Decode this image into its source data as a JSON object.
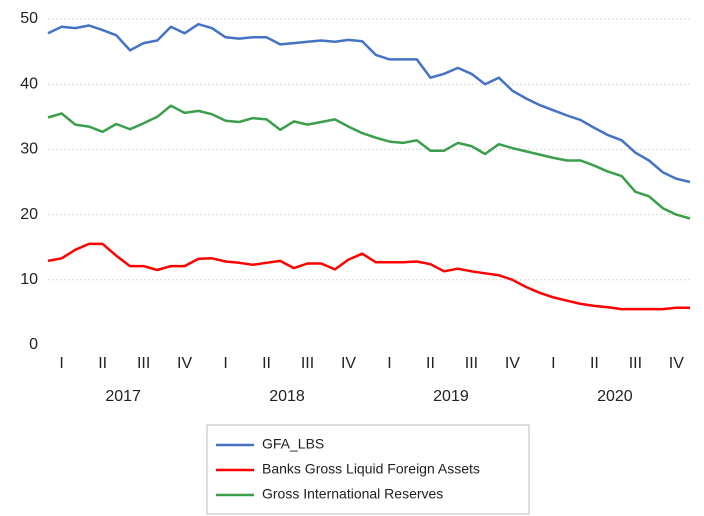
{
  "chart_data": {
    "type": "line",
    "categories": [
      null,
      "I",
      null,
      null,
      "II",
      null,
      null,
      "III",
      null,
      null,
      "IV",
      null,
      null,
      "I",
      null,
      null,
      "II",
      null,
      null,
      "III",
      null,
      null,
      "IV",
      null,
      null,
      "I",
      null,
      null,
      "II",
      null,
      null,
      "III",
      null,
      null,
      "IV",
      null,
      null,
      "I",
      null,
      null,
      "II",
      null,
      null,
      "III",
      null,
      null,
      "IV",
      null
    ],
    "years": [
      "2017",
      "2018",
      "2019",
      "2020"
    ],
    "series": [
      {
        "name": "GFA_LBS",
        "color": "#4472c4",
        "values": [
          47.8,
          48.8,
          48.6,
          49.0,
          48.3,
          47.5,
          45.2,
          46.3,
          46.7,
          48.8,
          47.8,
          49.2,
          48.6,
          47.2,
          47.0,
          47.2,
          47.2,
          46.1,
          46.3,
          46.5,
          46.7,
          46.5,
          46.8,
          46.6,
          44.5,
          43.8,
          43.8,
          43.8,
          41.0,
          41.6,
          42.5,
          41.6,
          40.0,
          41.0,
          39.0,
          37.8,
          36.8,
          36.0,
          35.2,
          34.5,
          33.3,
          32.2,
          31.4,
          29.5,
          28.3,
          26.5,
          25.5,
          25.0
        ]
      },
      {
        "name": "Banks Gross Liquid Foreign Assets",
        "color": "#ff0000",
        "values": [
          12.9,
          13.3,
          14.6,
          15.5,
          15.5,
          13.7,
          12.1,
          12.1,
          11.5,
          12.1,
          12.1,
          13.2,
          13.3,
          12.8,
          12.6,
          12.3,
          12.6,
          12.9,
          11.8,
          12.5,
          12.5,
          11.6,
          13.1,
          14.0,
          12.7,
          12.7,
          12.7,
          12.8,
          12.4,
          11.3,
          11.7,
          11.3,
          11.0,
          10.7,
          10.0,
          8.9,
          8.0,
          7.3,
          6.8,
          6.3,
          6.0,
          5.8,
          5.5,
          5.5,
          5.5,
          5.5,
          5.7,
          5.7
        ]
      },
      {
        "name": "Gross International Reserves",
        "color": "#3a9e4a",
        "values": [
          34.9,
          35.5,
          33.8,
          33.5,
          32.7,
          33.9,
          33.1,
          34.0,
          35.0,
          36.7,
          35.6,
          35.9,
          35.4,
          34.4,
          34.2,
          34.8,
          34.6,
          33.0,
          34.3,
          33.8,
          34.2,
          34.6,
          33.5,
          32.5,
          31.8,
          31.2,
          31.0,
          31.4,
          29.8,
          29.8,
          31.0,
          30.5,
          29.3,
          30.8,
          30.2,
          29.7,
          29.2,
          28.7,
          28.3,
          28.3,
          27.5,
          26.6,
          25.9,
          23.5,
          22.8,
          21.0,
          20.0,
          19.4
        ]
      }
    ],
    "ylim": [
      0,
      50
    ],
    "yticks": [
      0,
      10,
      20,
      30,
      40,
      50
    ],
    "grid": true
  }
}
